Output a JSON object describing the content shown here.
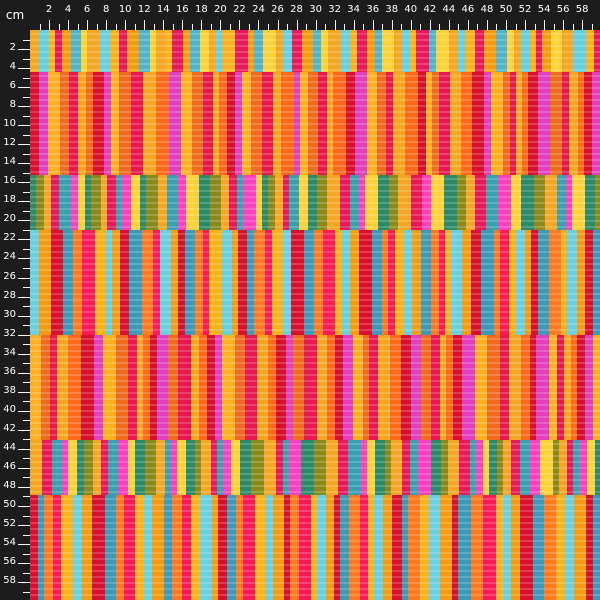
{
  "ruler": {
    "unit_label": "cm",
    "top_labels": [
      "2",
      "4",
      "6",
      "8",
      "10",
      "12",
      "14",
      "16",
      "18",
      "20",
      "22",
      "24",
      "26",
      "28",
      "30",
      "32",
      "34",
      "36",
      "38",
      "40",
      "42",
      "44",
      "46",
      "48",
      "50",
      "52",
      "54",
      "56",
      "58"
    ],
    "left_labels": [
      "2",
      "4",
      "6",
      "8",
      "10",
      "12",
      "14",
      "16",
      "18",
      "20",
      "22",
      "24",
      "26",
      "28",
      "30",
      "32",
      "34",
      "36",
      "38",
      "40",
      "42",
      "44",
      "46",
      "48",
      "50",
      "52",
      "54",
      "56",
      "58"
    ],
    "background": "#1c1c1c",
    "text_color": "#ffffff"
  },
  "fabric": {
    "description_colors": {
      "light_band": [
        "#f5a623",
        "#66d0e0",
        "#f7b21c",
        "#e8185a",
        "#f39c12",
        "#4fb3c9",
        "#ffd23a"
      ],
      "warm_band": [
        "#e8184f",
        "#f5a623",
        "#ff6a1a",
        "#d8102e",
        "#e040c0",
        "#ffb020",
        "#f06a20"
      ],
      "mixed_band": [
        "#8a8a1a",
        "#f5a623",
        "#e8185a",
        "#3aa0b0",
        "#ff40c0",
        "#ffd23a",
        "#2a8a6a"
      ],
      "cool_band": [
        "#ff1a5a",
        "#f7b21c",
        "#6ad0e0",
        "#f39c12",
        "#d8102e",
        "#3a9ab8",
        "#ff7a20"
      ]
    }
  }
}
